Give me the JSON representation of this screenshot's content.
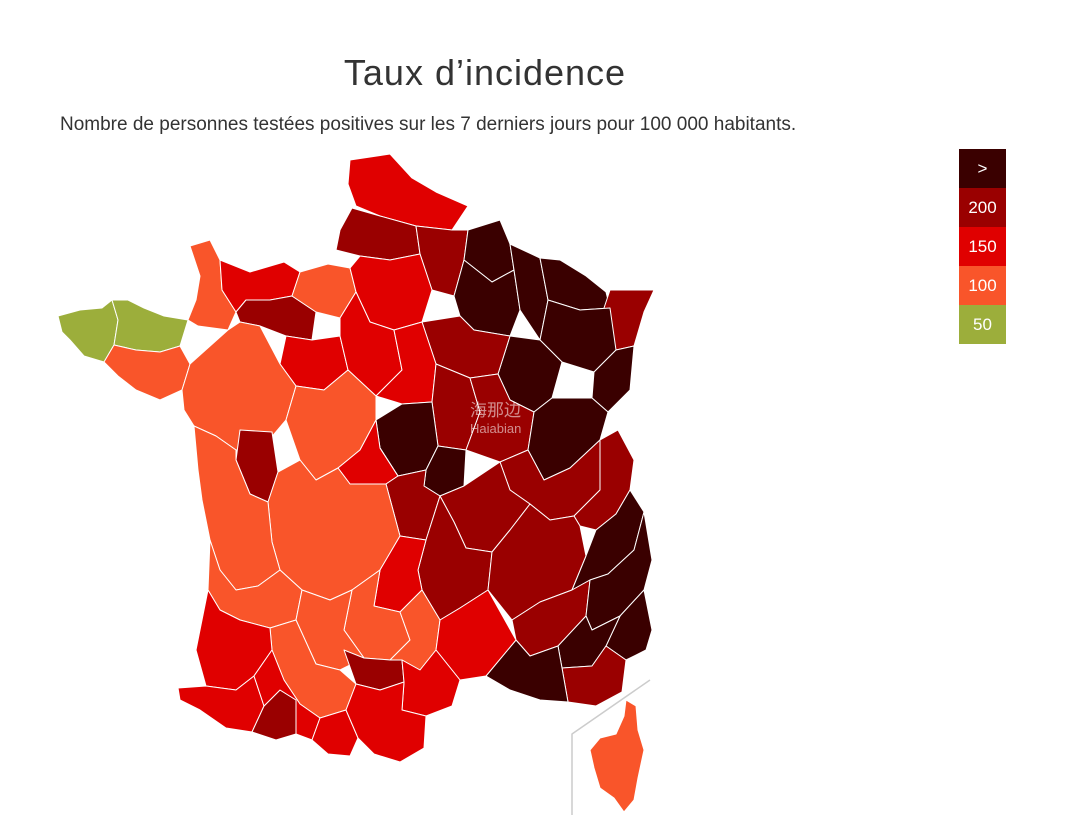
{
  "header": {
    "title": "Taux d’incidence",
    "subtitle": "Nombre de personnes testées positives sur les 7 derniers jours pour 100 000 habitants."
  },
  "legend": [
    {
      "label": ">",
      "color": "#3a0000"
    },
    {
      "label": "200",
      "color": "#9a0000"
    },
    {
      "label": "150",
      "color": "#e00000"
    },
    {
      "label": "100",
      "color": "#f9552a"
    },
    {
      "label": "50",
      "color": "#9cae3b"
    }
  ],
  "map": {
    "regions": [
      {
        "id": "bretagne-ouest",
        "level": "50"
      },
      {
        "id": "bretagne-nord",
        "level": "50"
      },
      {
        "id": "bretagne-sud",
        "level": "100"
      },
      {
        "id": "manche",
        "level": "100"
      },
      {
        "id": "calvados",
        "level": "150"
      },
      {
        "id": "orne",
        "level": "200"
      },
      {
        "id": "eure",
        "level": "100"
      },
      {
        "id": "nord",
        "level": "150"
      },
      {
        "id": "somme",
        "level": "200"
      },
      {
        "id": "aisne",
        "level": "200"
      },
      {
        "id": "ardennes",
        "level": ">"
      },
      {
        "id": "marne",
        "level": ">"
      },
      {
        "id": "meuse",
        "level": ">"
      },
      {
        "id": "moselle",
        "level": ">"
      },
      {
        "id": "bas-rhin",
        "level": "200"
      },
      {
        "id": "haut-rhin",
        "level": ">"
      },
      {
        "id": "vosges",
        "level": ">"
      },
      {
        "id": "haute-marne",
        "level": ">"
      },
      {
        "id": "aube",
        "level": "200"
      },
      {
        "id": "ile-de-france",
        "level": "150"
      },
      {
        "id": "centre",
        "level": "150"
      },
      {
        "id": "pays-de-la-loire",
        "level": "100"
      },
      {
        "id": "sarthe",
        "level": "150"
      },
      {
        "id": "loiret",
        "level": "150"
      },
      {
        "id": "yonne",
        "level": "200"
      },
      {
        "id": "cote-d-or",
        "level": "200"
      },
      {
        "id": "doubs",
        "level": ">"
      },
      {
        "id": "nievre",
        "level": ">"
      },
      {
        "id": "saone-et-loire",
        "level": ">"
      },
      {
        "id": "vienne",
        "level": "100"
      },
      {
        "id": "indre",
        "level": "200"
      },
      {
        "id": "cher",
        "level": "150"
      },
      {
        "id": "allier",
        "level": "200"
      },
      {
        "id": "ain",
        "level": "200"
      },
      {
        "id": "haute-savoie",
        "level": "200"
      },
      {
        "id": "rhone",
        "level": "200"
      },
      {
        "id": "isere",
        "level": "200"
      },
      {
        "id": "savoie",
        "level": ">"
      },
      {
        "id": "nouvelle-aquitaine",
        "level": "100"
      },
      {
        "id": "gironde",
        "level": "100"
      },
      {
        "id": "limousin",
        "level": "100"
      },
      {
        "id": "puy-de-dome",
        "level": "150"
      },
      {
        "id": "cantal",
        "level": "100"
      },
      {
        "id": "loire",
        "level": "200"
      },
      {
        "id": "drome",
        "level": "200"
      },
      {
        "id": "hautes-alpes",
        "level": ">"
      },
      {
        "id": "alpes-maritimes",
        "level": ">"
      },
      {
        "id": "vaucluse",
        "level": ">"
      },
      {
        "id": "var",
        "level": "200"
      },
      {
        "id": "bouches-du-rhone",
        "level": ">"
      },
      {
        "id": "gard",
        "level": "150"
      },
      {
        "id": "herault",
        "level": "150"
      },
      {
        "id": "lozere",
        "level": "100"
      },
      {
        "id": "aveyron",
        "level": "200"
      },
      {
        "id": "lot",
        "level": "100"
      },
      {
        "id": "landes",
        "level": "150"
      },
      {
        "id": "pyrenees-atlantiques",
        "level": "150"
      },
      {
        "id": "hautes-pyrenees",
        "level": "200"
      },
      {
        "id": "haute-garonne",
        "level": "150"
      },
      {
        "id": "ariege",
        "level": "150"
      },
      {
        "id": "aude",
        "level": "150"
      },
      {
        "id": "tarn",
        "level": "100"
      },
      {
        "id": "corse",
        "level": "100"
      }
    ]
  },
  "watermark": {
    "cn": "海那边",
    "en": "Haiabian"
  }
}
